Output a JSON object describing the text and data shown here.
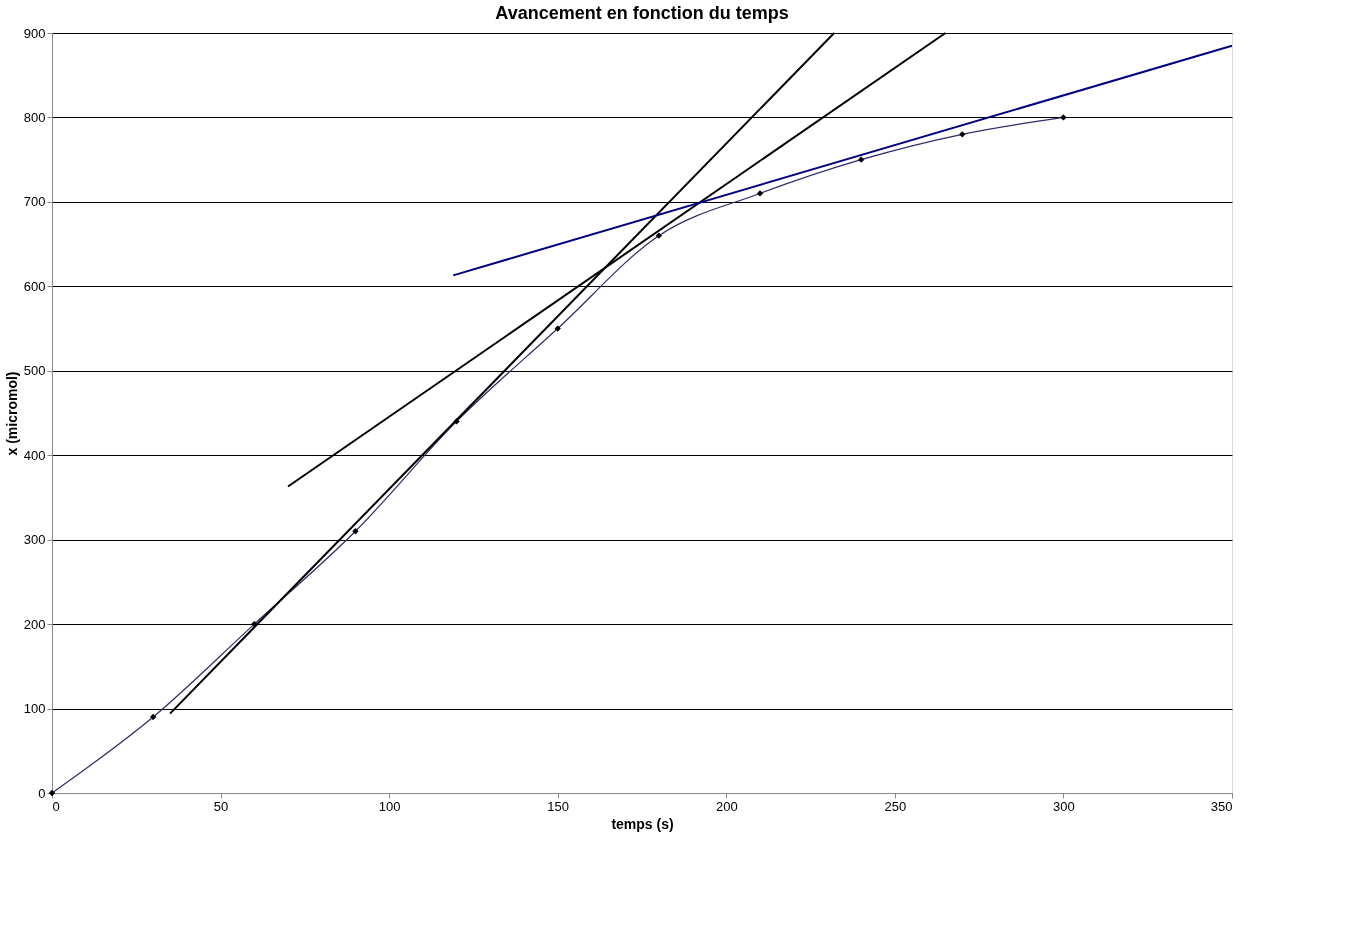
{
  "chart_data": {
    "type": "line",
    "title": "Avancement en fonction du temps",
    "xlabel": "temps (s)",
    "ylabel": "x (micromol)",
    "xlim": [
      0,
      350
    ],
    "xticks": [
      0,
      50,
      100,
      150,
      200,
      250,
      300,
      350
    ],
    "ylim": [
      0,
      900
    ],
    "yticks": [
      0,
      100,
      200,
      300,
      400,
      500,
      600,
      700,
      800,
      900
    ],
    "grid": "y",
    "series": [
      {
        "marker": "diamond",
        "color": "#2b2b6b",
        "x": [
          0,
          30,
          60,
          90,
          120,
          150,
          180,
          210,
          240,
          270,
          300
        ],
        "values": [
          0,
          90,
          200,
          310,
          440,
          550,
          660,
          710,
          750,
          780,
          800
        ]
      },
      {
        "marker": "none",
        "color": "#000000",
        "x": [
          35,
          232
        ],
        "values": [
          94,
          900
        ]
      },
      {
        "marker": "none",
        "color": "#000000",
        "x": [
          70,
          265
        ],
        "values": [
          363,
          900
        ]
      },
      {
        "marker": "none",
        "color": "#000080",
        "x": [
          119,
          350
        ],
        "values": [
          613,
          885
        ]
      }
    ]
  }
}
